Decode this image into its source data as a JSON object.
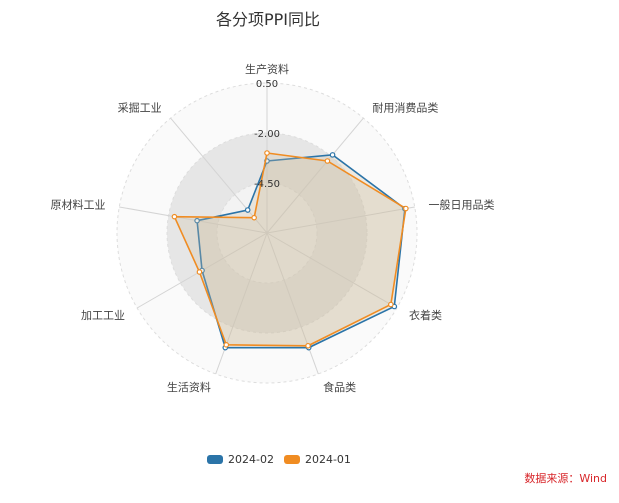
{
  "chart_data": {
    "type": "radar",
    "title": "各分项PPI同比",
    "indicators": [
      "生产资料",
      "耐用消费品类",
      "一般日用品类",
      "衣着类",
      "食品类",
      "生活资料",
      "加工工业",
      "原材料工业",
      "采掘工业"
    ],
    "range": [
      -7.0,
      0.5
    ],
    "tick_labels": [
      "0.50",
      "-2.00",
      "-4.50"
    ],
    "series": [
      {
        "name": "2024-02",
        "color": "#2b74a8",
        "values": [
          -3.4,
          -1.9,
          0.0,
          0.35,
          -0.9,
          -0.9,
          -3.25,
          -3.45,
          -5.5
        ]
      },
      {
        "name": "2024-01",
        "color": "#f08c22",
        "values": [
          -3.0,
          -2.3,
          0.05,
          0.15,
          -1.0,
          -1.05,
          -3.1,
          -2.3,
          -6.0
        ]
      }
    ],
    "legend_position": "bottom"
  },
  "source": "数据来源：Wind"
}
